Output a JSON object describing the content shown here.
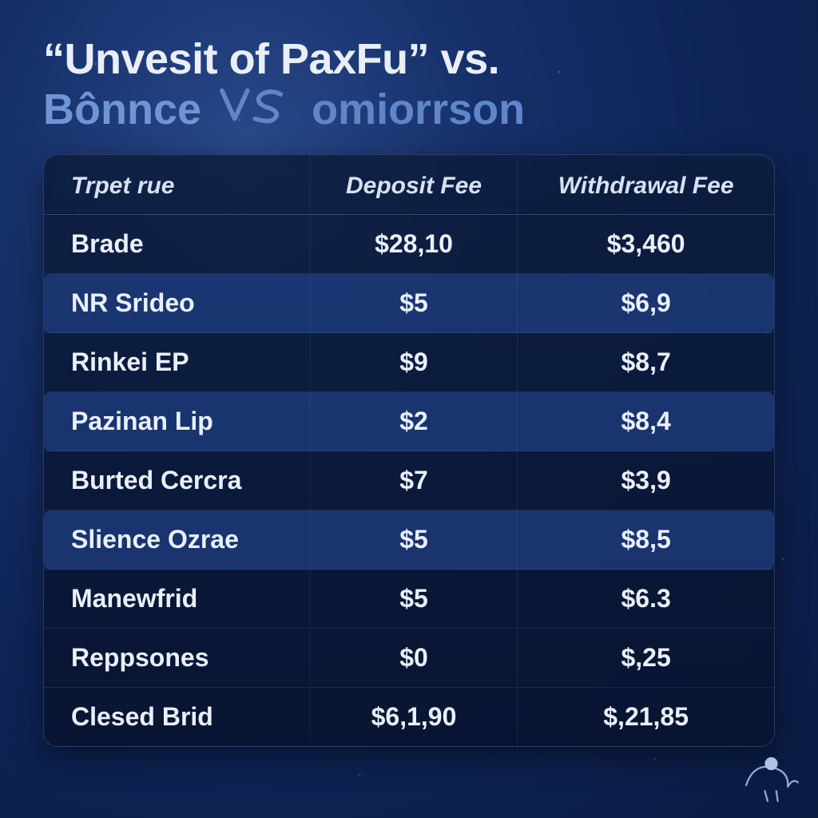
{
  "title": {
    "line1": "“Unvesit of PaxFu” vs.",
    "line2_a": "Bônnce",
    "line2_vs": "VS",
    "line2_b": "omiorrson",
    "line1_color": "#e9eef7",
    "line2_color": "#6f95d6",
    "fontsize": 54
  },
  "table": {
    "header_fontsize": 30,
    "cell_fontsize": 32,
    "header_color": "#d8e1f2",
    "cell_color": "#eaf0fa",
    "border_color": "rgba(160,190,240,.25)",
    "row_highlight_bg": "rgba(34,68,140,.65)",
    "card_bg_top": "rgba(12,28,60,.85)",
    "card_bg_bottom": "rgba(8,20,48,.92)",
    "columns": [
      "Trpet rue",
      "Deposit Fee",
      "Withdrawal Fee"
    ],
    "column_align": [
      "left",
      "center",
      "center"
    ],
    "rows": [
      {
        "cells": [
          "Brade",
          "$28,10",
          "$3,460"
        ],
        "highlight": false
      },
      {
        "cells": [
          "NR Srideo",
          "$5",
          "$6,9"
        ],
        "highlight": true
      },
      {
        "cells": [
          "Rinkei EP",
          "$9",
          "$8,7"
        ],
        "highlight": false
      },
      {
        "cells": [
          "Pazinan Lip",
          "$2",
          "$8,4"
        ],
        "highlight": true
      },
      {
        "cells": [
          "Burted Cercra",
          "$7",
          "$3,9"
        ],
        "highlight": false
      },
      {
        "cells": [
          "Slience Ozrae",
          "$5",
          "$8,5"
        ],
        "highlight": true
      },
      {
        "cells": [
          "Manewfrid",
          "$5",
          "$6.3"
        ],
        "highlight": false
      },
      {
        "cells": [
          "Reppsones",
          "$0",
          "$,25"
        ],
        "highlight": false
      },
      {
        "cells": [
          "Clesed Brid",
          "$6,1,90",
          "$,21,85"
        ],
        "highlight": false
      }
    ]
  },
  "background": {
    "gradient_inner": "#2a4a8a",
    "gradient_mid": "#16306a",
    "gradient_outer": "#0a1b42"
  }
}
